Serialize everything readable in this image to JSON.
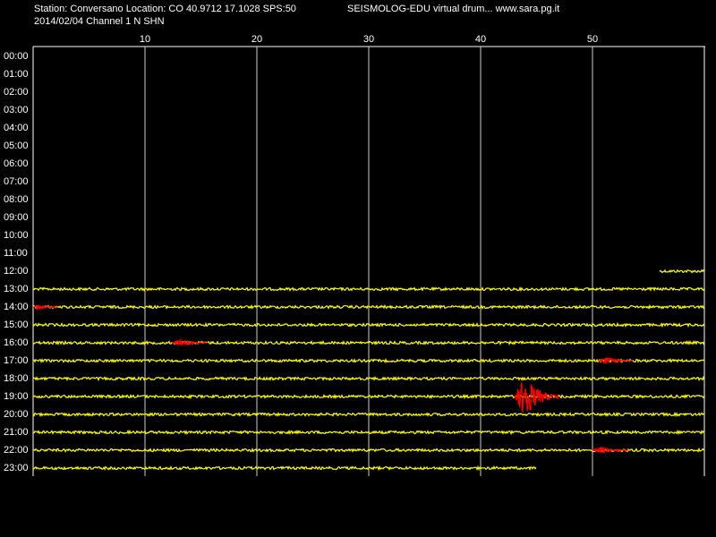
{
  "header": {
    "line1": "Station: Conversano Location: CO 40.9712 17.1028 SPS:50",
    "line2": "2014/02/04  Channel 1 N SHN",
    "source": "SEISMOLOG-EDU virtual drum... www.sara.pg.it"
  },
  "minute_range": [
    0,
    60
  ],
  "minute_ticks": [
    10,
    20,
    30,
    40,
    50
  ],
  "hours": [
    "00:00",
    "01:00",
    "02:00",
    "03:00",
    "04:00",
    "05:00",
    "06:00",
    "07:00",
    "08:00",
    "09:00",
    "10:00",
    "11:00",
    "12:00",
    "13:00",
    "14:00",
    "15:00",
    "16:00",
    "17:00",
    "18:00",
    "19:00",
    "20:00",
    "21:00",
    "22:00",
    "23:00"
  ],
  "traces": [
    {
      "row": 12,
      "start": 56,
      "end": 60
    },
    {
      "row": 13,
      "start": 0,
      "end": 60
    },
    {
      "row": 14,
      "start": 0,
      "end": 60
    },
    {
      "row": 15,
      "start": 0,
      "end": 60
    },
    {
      "row": 16,
      "start": 0,
      "end": 60
    },
    {
      "row": 17,
      "start": 0,
      "end": 60
    },
    {
      "row": 18,
      "start": 0,
      "end": 60
    },
    {
      "row": 19,
      "start": 0,
      "end": 60
    },
    {
      "row": 20,
      "start": 0,
      "end": 60
    },
    {
      "row": 21,
      "start": 0,
      "end": 60
    },
    {
      "row": 22,
      "start": 0,
      "end": 60
    },
    {
      "row": 23,
      "start": 0,
      "end": 45
    }
  ],
  "events": [
    {
      "row": 14,
      "start": 0,
      "end": 2.2
    },
    {
      "row": 16,
      "start": 12.4,
      "end": 15.6
    },
    {
      "row": 17,
      "start": 50.5,
      "end": 53.6
    },
    {
      "row": 19,
      "start": 43,
      "end": 47
    },
    {
      "row": 22,
      "start": 50,
      "end": 53.2
    }
  ]
}
